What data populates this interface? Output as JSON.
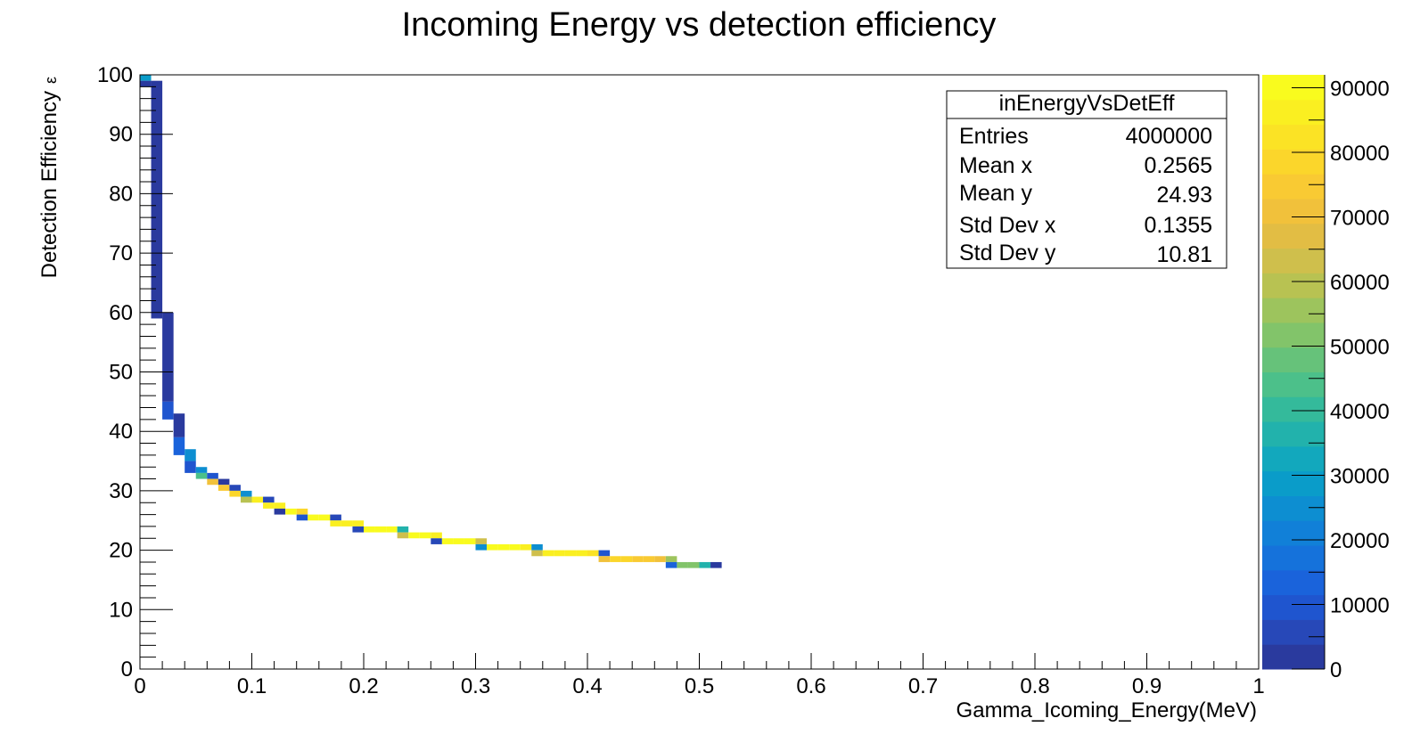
{
  "chart_data": {
    "type": "heatmap",
    "title": "Incoming Energy vs detection efficiency",
    "xlabel": "Gamma_Icoming_Energy(MeV)",
    "ylabel": "Detection Efficiency",
    "ylabel_symbol": "ε",
    "xlim": [
      0,
      1
    ],
    "ylim": [
      0,
      100
    ],
    "x_ticks": [
      "0",
      "0.1",
      "0.2",
      "0.3",
      "0.4",
      "0.5",
      "0.6",
      "0.7",
      "0.8",
      "0.9",
      "1"
    ],
    "y_ticks": [
      "0",
      "10",
      "20",
      "30",
      "40",
      "50",
      "60",
      "70",
      "80",
      "90",
      "100"
    ],
    "bin_width_x": 0.01,
    "bin_width_y": 1,
    "grid": false,
    "colorbar": {
      "min": 0,
      "max": 92000,
      "labels": [
        "0",
        "10000",
        "20000",
        "30000",
        "40000",
        "50000",
        "60000",
        "70000",
        "80000",
        "90000"
      ],
      "colors": [
        "#2a3a9e",
        "#2748b8",
        "#1f55cf",
        "#1a63db",
        "#1572db",
        "#1180d8",
        "#0d8ed1",
        "#0a9cc9",
        "#12a8bd",
        "#22b2ac",
        "#34ba9b",
        "#4cc08a",
        "#66c27a",
        "#82c46a",
        "#9dc45d",
        "#b8c252",
        "#cfbf4c",
        "#e2bd44",
        "#f1c13b",
        "#f9ca33",
        "#fbd62b",
        "#fbe325",
        "#faef21",
        "#f9fb1e"
      ]
    },
    "stats": {
      "name": "inEnergyVsDetEff",
      "rows": [
        {
          "label": "Entries",
          "value": "4000000"
        },
        {
          "label": "Mean x",
          "value": "0.2565"
        },
        {
          "label": "Mean y",
          "value": "24.93"
        },
        {
          "label": "Std Dev x",
          "value": "0.1355"
        },
        {
          "label": "Std Dev y",
          "value": "10.81"
        }
      ]
    },
    "cells": [
      {
        "x": 0.0,
        "y": 99,
        "w": 0.01,
        "h": 1,
        "count": 30000
      },
      {
        "x": 0.0,
        "y": 98,
        "w": 0.01,
        "h": 1,
        "count": 1500
      },
      {
        "x": 0.01,
        "y": 59,
        "w": 0.01,
        "h": 40,
        "count": 1500
      },
      {
        "x": 0.02,
        "y": 45,
        "w": 0.01,
        "h": 15,
        "count": 1500
      },
      {
        "x": 0.02,
        "y": 42,
        "w": 0.01,
        "h": 3,
        "count": 8000
      },
      {
        "x": 0.03,
        "y": 39,
        "w": 0.01,
        "h": 4,
        "count": 2500
      },
      {
        "x": 0.03,
        "y": 36,
        "w": 0.01,
        "h": 3,
        "count": 15000
      },
      {
        "x": 0.04,
        "y": 35,
        "w": 0.01,
        "h": 2,
        "count": 25000
      },
      {
        "x": 0.04,
        "y": 33,
        "w": 0.01,
        "h": 2,
        "count": 8000
      },
      {
        "x": 0.05,
        "y": 33,
        "w": 0.01,
        "h": 1,
        "count": 25000
      },
      {
        "x": 0.05,
        "y": 32,
        "w": 0.01,
        "h": 1,
        "count": 45000
      },
      {
        "x": 0.06,
        "y": 32,
        "w": 0.01,
        "h": 1,
        "count": 8000
      },
      {
        "x": 0.06,
        "y": 31,
        "w": 0.01,
        "h": 1,
        "count": 70000
      },
      {
        "x": 0.07,
        "y": 31,
        "w": 0.01,
        "h": 1,
        "count": 3000
      },
      {
        "x": 0.07,
        "y": 30,
        "w": 0.01,
        "h": 1,
        "count": 75000
      },
      {
        "x": 0.08,
        "y": 30,
        "w": 0.01,
        "h": 1,
        "count": 5000
      },
      {
        "x": 0.08,
        "y": 29,
        "w": 0.01,
        "h": 1,
        "count": 80000
      },
      {
        "x": 0.09,
        "y": 29,
        "w": 0.01,
        "h": 1,
        "count": 25000
      },
      {
        "x": 0.09,
        "y": 28,
        "w": 0.01,
        "h": 1,
        "count": 60000
      },
      {
        "x": 0.1,
        "y": 28,
        "w": 0.01,
        "h": 1,
        "count": 88000
      },
      {
        "x": 0.11,
        "y": 28,
        "w": 0.01,
        "h": 1,
        "count": 5000
      },
      {
        "x": 0.11,
        "y": 27,
        "w": 0.01,
        "h": 1,
        "count": 85000
      },
      {
        "x": 0.12,
        "y": 27,
        "w": 0.01,
        "h": 1,
        "count": 88000
      },
      {
        "x": 0.12,
        "y": 26,
        "w": 0.01,
        "h": 1,
        "count": 2000
      },
      {
        "x": 0.13,
        "y": 26,
        "w": 0.01,
        "h": 1,
        "count": 90000
      },
      {
        "x": 0.14,
        "y": 26,
        "w": 0.01,
        "h": 1,
        "count": 80000
      },
      {
        "x": 0.14,
        "y": 25,
        "w": 0.01,
        "h": 1,
        "count": 8000
      },
      {
        "x": 0.15,
        "y": 25,
        "w": 0.01,
        "h": 1,
        "count": 90000
      },
      {
        "x": 0.16,
        "y": 25,
        "w": 0.01,
        "h": 1,
        "count": 91000
      },
      {
        "x": 0.17,
        "y": 25,
        "w": 0.01,
        "h": 1,
        "count": 5000
      },
      {
        "x": 0.17,
        "y": 24,
        "w": 0.01,
        "h": 1,
        "count": 85000
      },
      {
        "x": 0.18,
        "y": 24,
        "w": 0.01,
        "h": 1,
        "count": 87000
      },
      {
        "x": 0.19,
        "y": 24,
        "w": 0.01,
        "h": 1,
        "count": 88000
      },
      {
        "x": 0.19,
        "y": 23,
        "w": 0.01,
        "h": 1,
        "count": 5000
      },
      {
        "x": 0.2,
        "y": 23,
        "w": 0.01,
        "h": 1,
        "count": 91000
      },
      {
        "x": 0.21,
        "y": 23,
        "w": 0.01,
        "h": 1,
        "count": 92000
      },
      {
        "x": 0.22,
        "y": 23,
        "w": 0.01,
        "h": 1,
        "count": 90000
      },
      {
        "x": 0.23,
        "y": 23,
        "w": 0.01,
        "h": 1,
        "count": 35000
      },
      {
        "x": 0.23,
        "y": 22,
        "w": 0.01,
        "h": 1,
        "count": 65000
      },
      {
        "x": 0.24,
        "y": 22,
        "w": 0.01,
        "h": 1,
        "count": 90000
      },
      {
        "x": 0.25,
        "y": 22,
        "w": 0.01,
        "h": 1,
        "count": 91000
      },
      {
        "x": 0.26,
        "y": 22,
        "w": 0.01,
        "h": 1,
        "count": 88000
      },
      {
        "x": 0.26,
        "y": 21,
        "w": 0.01,
        "h": 1,
        "count": 5000
      },
      {
        "x": 0.27,
        "y": 21,
        "w": 0.01,
        "h": 1,
        "count": 91000
      },
      {
        "x": 0.28,
        "y": 21,
        "w": 0.01,
        "h": 1,
        "count": 92000
      },
      {
        "x": 0.29,
        "y": 21,
        "w": 0.01,
        "h": 1,
        "count": 90000
      },
      {
        "x": 0.3,
        "y": 21,
        "w": 0.01,
        "h": 1,
        "count": 65000
      },
      {
        "x": 0.3,
        "y": 20,
        "w": 0.01,
        "h": 1,
        "count": 25000
      },
      {
        "x": 0.31,
        "y": 20,
        "w": 0.01,
        "h": 1,
        "count": 90000
      },
      {
        "x": 0.32,
        "y": 20,
        "w": 0.01,
        "h": 1,
        "count": 91000
      },
      {
        "x": 0.33,
        "y": 20,
        "w": 0.01,
        "h": 1,
        "count": 90000
      },
      {
        "x": 0.34,
        "y": 20,
        "w": 0.01,
        "h": 1,
        "count": 88000
      },
      {
        "x": 0.35,
        "y": 20,
        "w": 0.01,
        "h": 1,
        "count": 25000
      },
      {
        "x": 0.35,
        "y": 19,
        "w": 0.01,
        "h": 1,
        "count": 65000
      },
      {
        "x": 0.36,
        "y": 19,
        "w": 0.01,
        "h": 1,
        "count": 88000
      },
      {
        "x": 0.37,
        "y": 19,
        "w": 0.01,
        "h": 1,
        "count": 86000
      },
      {
        "x": 0.38,
        "y": 19,
        "w": 0.01,
        "h": 1,
        "count": 87000
      },
      {
        "x": 0.39,
        "y": 19,
        "w": 0.01,
        "h": 1,
        "count": 85000
      },
      {
        "x": 0.4,
        "y": 19,
        "w": 0.01,
        "h": 1,
        "count": 82000
      },
      {
        "x": 0.41,
        "y": 19,
        "w": 0.01,
        "h": 1,
        "count": 10000
      },
      {
        "x": 0.41,
        "y": 18,
        "w": 0.01,
        "h": 1,
        "count": 72000
      },
      {
        "x": 0.42,
        "y": 18,
        "w": 0.01,
        "h": 1,
        "count": 78000
      },
      {
        "x": 0.43,
        "y": 18,
        "w": 0.01,
        "h": 1,
        "count": 77000
      },
      {
        "x": 0.44,
        "y": 18,
        "w": 0.01,
        "h": 1,
        "count": 75000
      },
      {
        "x": 0.45,
        "y": 18,
        "w": 0.01,
        "h": 1,
        "count": 73000
      },
      {
        "x": 0.46,
        "y": 18,
        "w": 0.01,
        "h": 1,
        "count": 71000
      },
      {
        "x": 0.47,
        "y": 18,
        "w": 0.01,
        "h": 1,
        "count": 55000
      },
      {
        "x": 0.47,
        "y": 17,
        "w": 0.01,
        "h": 1,
        "count": 15000
      },
      {
        "x": 0.48,
        "y": 17,
        "w": 0.01,
        "h": 1,
        "count": 52000
      },
      {
        "x": 0.49,
        "y": 17,
        "w": 0.01,
        "h": 1,
        "count": 50000
      },
      {
        "x": 0.5,
        "y": 17,
        "w": 0.01,
        "h": 1,
        "count": 35000
      },
      {
        "x": 0.51,
        "y": 17,
        "w": 0.01,
        "h": 1,
        "count": 3000
      }
    ]
  }
}
